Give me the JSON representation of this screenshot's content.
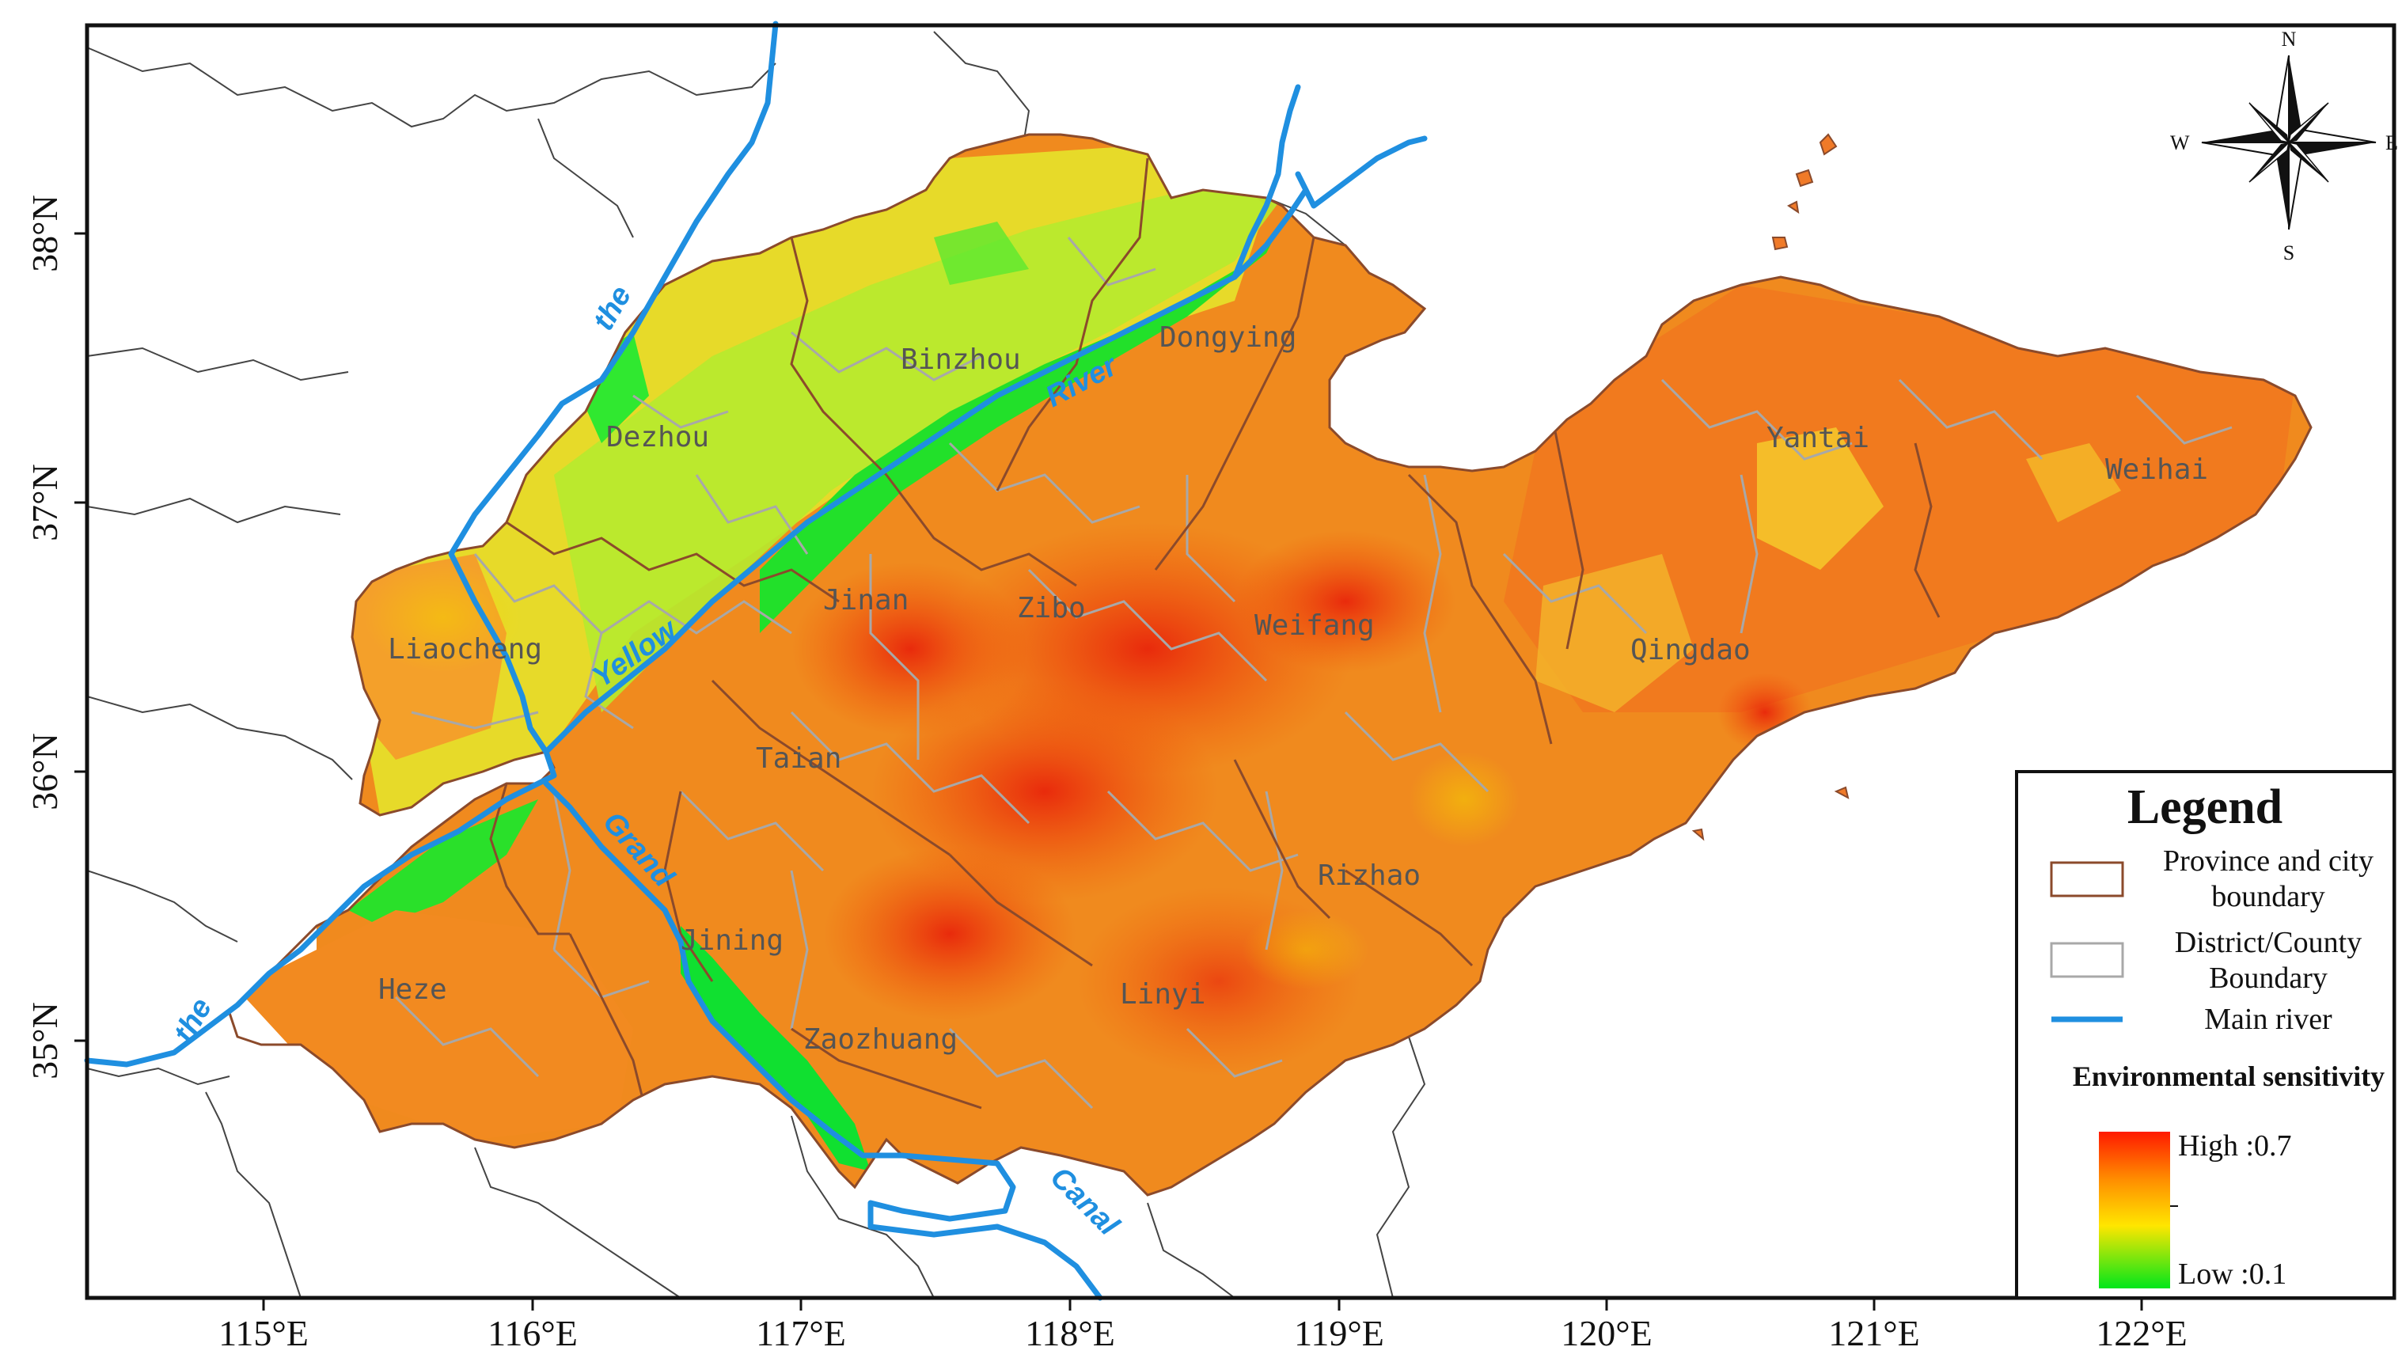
{
  "map": {
    "x_ticks": [
      "115°E",
      "116°E",
      "117°E",
      "118°E",
      "119°E",
      "120°E",
      "121°E",
      "122°E"
    ],
    "y_ticks": [
      "38°N",
      "37°N",
      "36°N",
      "35°N"
    ],
    "cities": [
      "Dongying",
      "Binzhou",
      "Dezhou",
      "Liaocheng",
      "Jinan",
      "Zibo",
      "Weifang",
      "Yantai",
      "Weihai",
      "Qingdao",
      "Taian",
      "Rizhao",
      "Jining",
      "Heze",
      "Zaozhuang",
      "Linyi"
    ],
    "river_words": [
      "the",
      "River",
      "Yellow",
      "the",
      "Grand",
      "Canal"
    ],
    "compass": {
      "n": "N",
      "s": "S",
      "e": "E",
      "w": "W"
    },
    "colors": {
      "high": "#ff1a00",
      "mid": "#ffd400",
      "low": "#00e61a",
      "river": "#1f8fe0",
      "province_boundary": "#8b4a2b",
      "county_boundary": "#a8a8a8"
    }
  },
  "legend": {
    "title": "Legend",
    "items": [
      {
        "label_line1": "Province and city",
        "label_line2": "boundary"
      },
      {
        "label_line1": "District/County",
        "label_line2": "Boundary"
      },
      {
        "label_line1": "Main river",
        "label_line2": ""
      }
    ],
    "scale_title": "Environmental sensitivity",
    "high_label": "High :0.7",
    "low_label": "Low :0.1"
  }
}
